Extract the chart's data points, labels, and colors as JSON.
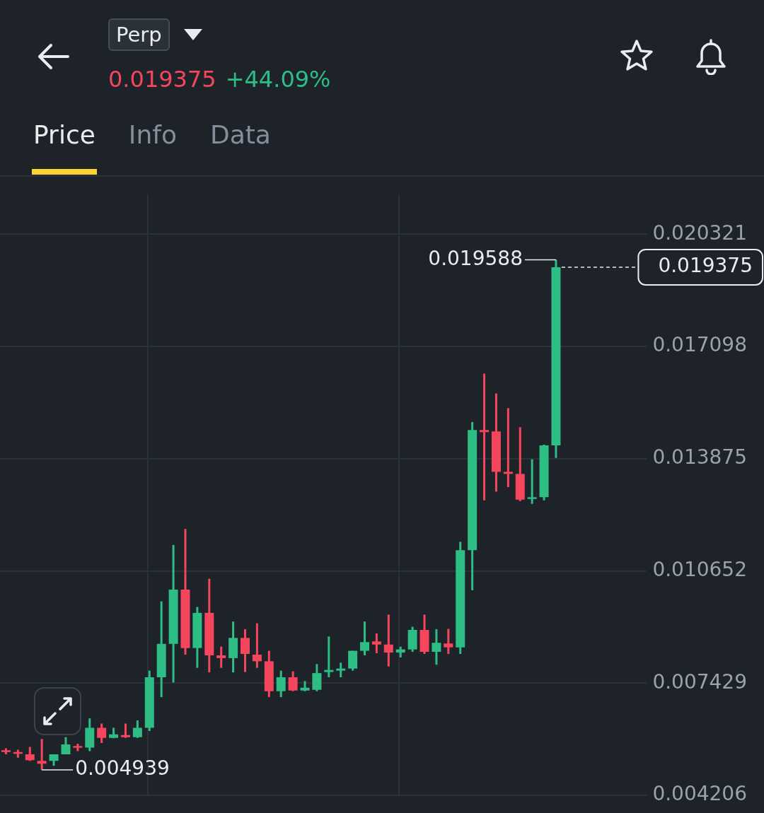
{
  "chart_data": {
    "type": "candlestick",
    "categories": [
      null,
      null,
      null,
      null,
      null,
      null,
      null,
      null,
      null,
      null,
      null,
      null,
      null,
      null,
      null,
      null,
      null,
      null,
      null,
      null,
      null,
      null,
      null,
      null,
      null,
      null,
      null,
      null,
      null,
      null,
      null,
      null,
      null,
      null,
      null,
      null,
      null,
      null,
      null,
      null,
      null,
      null,
      null,
      null,
      null,
      null,
      null
    ],
    "ohlc": [
      [
        0.0055,
        0.00556,
        0.00539,
        0.00546
      ],
      [
        0.00545,
        0.00552,
        0.00529,
        0.00541
      ],
      [
        0.00539,
        0.0056,
        0.0052,
        0.00522
      ],
      [
        0.0052,
        0.00583,
        0.004939,
        0.00512
      ],
      [
        0.0052,
        0.00539,
        0.00506,
        0.00539
      ],
      [
        0.00539,
        0.00588,
        0.00539,
        0.00567
      ],
      [
        0.00562,
        0.00569,
        0.00548,
        0.00558
      ],
      [
        0.00558,
        0.00642,
        0.00548,
        0.00615
      ],
      [
        0.00615,
        0.00627,
        0.00571,
        0.00586
      ],
      [
        0.00586,
        0.00615,
        0.00585,
        0.00596
      ],
      [
        0.00594,
        0.00627,
        0.00586,
        0.00588
      ],
      [
        0.00588,
        0.00636,
        0.00586,
        0.00615
      ],
      [
        0.00615,
        0.00779,
        0.00606,
        0.0076
      ],
      [
        0.0076,
        0.00978,
        0.00703,
        0.00856
      ],
      [
        0.00856,
        0.0114,
        0.00745,
        0.01012
      ],
      [
        0.01012,
        0.01186,
        0.00825,
        0.00844
      ],
      [
        0.00844,
        0.00962,
        0.00787,
        0.00945
      ],
      [
        0.00945,
        0.01043,
        0.00774,
        0.00823
      ],
      [
        0.00823,
        0.00848,
        0.00787,
        0.00815
      ],
      [
        0.00815,
        0.0092,
        0.00774,
        0.00873
      ],
      [
        0.00873,
        0.00898,
        0.00775,
        0.00827
      ],
      [
        0.00825,
        0.00915,
        0.00787,
        0.00806
      ],
      [
        0.00806,
        0.00836,
        0.00703,
        0.0072
      ],
      [
        0.0072,
        0.00779,
        0.00703,
        0.0076
      ],
      [
        0.0076,
        0.00777,
        0.0072,
        0.00722
      ],
      [
        0.00722,
        0.00749,
        0.0072,
        0.0073
      ],
      [
        0.00724,
        0.00798,
        0.0072,
        0.00772
      ],
      [
        0.00775,
        0.00877,
        0.0076,
        0.00781
      ],
      [
        0.00779,
        0.00802,
        0.0076,
        0.00785
      ],
      [
        0.00785,
        0.00836,
        0.00779,
        0.00836
      ],
      [
        0.00836,
        0.0092,
        0.00823,
        0.00861
      ],
      [
        0.00863,
        0.00886,
        0.00829,
        0.00854
      ],
      [
        0.00854,
        0.0094,
        0.00791,
        0.00831
      ],
      [
        0.00831,
        0.00848,
        0.00817,
        0.0084
      ],
      [
        0.0084,
        0.00905,
        0.00833,
        0.00896
      ],
      [
        0.00896,
        0.0094,
        0.00827,
        0.00833
      ],
      [
        0.00833,
        0.00898,
        0.00796,
        0.00859
      ],
      [
        0.00857,
        0.00899,
        0.00827,
        0.00846
      ],
      [
        0.00846,
        0.01149,
        0.00827,
        0.01125
      ],
      [
        0.01125,
        0.01493,
        0.0101,
        0.0147
      ],
      [
        0.0147,
        0.01632,
        0.01268,
        0.01464
      ],
      [
        0.01466,
        0.01575,
        0.01293,
        0.0135
      ],
      [
        0.0135,
        0.01533,
        0.01306,
        0.01344
      ],
      [
        0.01344,
        0.01478,
        0.01266,
        0.0127
      ],
      [
        0.01272,
        0.01386,
        0.01258,
        0.01277
      ],
      [
        0.01277,
        0.01428,
        0.01268,
        0.01426
      ],
      [
        0.01426,
        0.019588,
        0.0139,
        0.019375
      ]
    ],
    "colors": [
      "#f6465d",
      "#f6465d",
      "#f6465d",
      "#f6465d",
      "#2ebd85",
      "#2ebd85",
      "#f6465d",
      "#2ebd85",
      "#f6465d",
      "#2ebd85",
      "#f6465d",
      "#2ebd85",
      "#2ebd85",
      "#2ebd85",
      "#2ebd85",
      "#f6465d",
      "#2ebd85",
      "#f6465d",
      "#f6465d",
      "#2ebd85",
      "#f6465d",
      "#f6465d",
      "#f6465d",
      "#2ebd85",
      "#f6465d",
      "#2ebd85",
      "#2ebd85",
      "#2ebd85",
      "#2ebd85",
      "#2ebd85",
      "#2ebd85",
      "#f6465d",
      "#f6465d",
      "#2ebd85",
      "#2ebd85",
      "#f6465d",
      "#2ebd85",
      "#f6465d",
      "#2ebd85",
      "#2ebd85",
      "#f6465d",
      "#f6465d",
      "#f6465d",
      "#f6465d",
      "#2ebd85",
      "#2ebd85",
      "#2ebd85"
    ],
    "ylim": [
      0.004206,
      0.02147
    ],
    "yticks": [
      0.004206,
      0.007429,
      0.010652,
      0.013875,
      0.017098,
      0.020321
    ],
    "grid": true,
    "tick_labels": "y",
    "ref_lines": [
      {
        "axis": "y",
        "value": 0.019375,
        "label": "0.019375",
        "line_style": "dashed",
        "color": "#eaecef"
      }
    ],
    "annotations": [
      "Perp",
      "0.019375",
      "+44.09%",
      "Price",
      "Info",
      "Data",
      "0.019588",
      "0.004939"
    ]
  }
}
